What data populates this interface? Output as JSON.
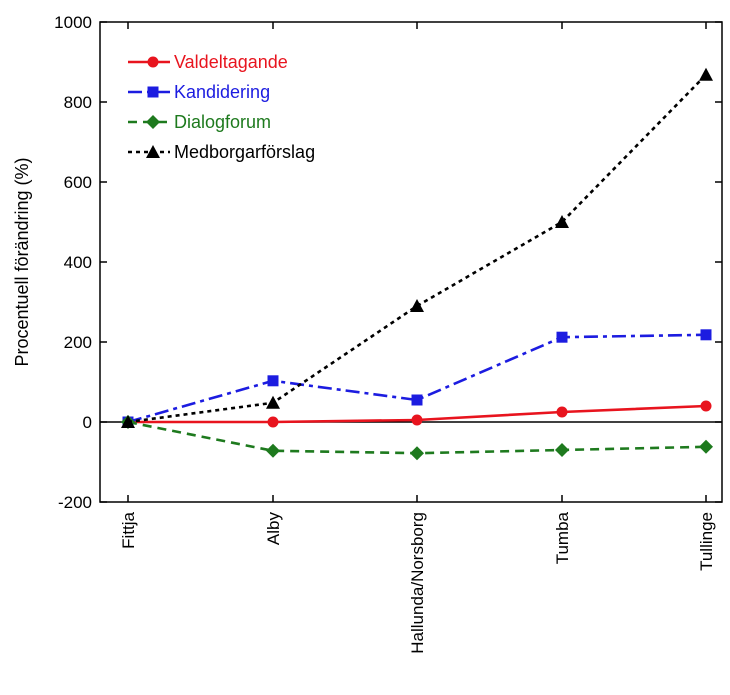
{
  "chart_data": {
    "type": "line",
    "title": "",
    "xlabel": "",
    "ylabel": "Procentuell förändring (%)",
    "ylim": [
      -200,
      1000
    ],
    "yticks": [
      -200,
      0,
      200,
      400,
      600,
      800,
      1000
    ],
    "categories": [
      "Fittja",
      "Alby",
      "Hallunda/Norsborg",
      "Tumba",
      "Tullinge"
    ],
    "legend_position": "top-left",
    "grid": false,
    "zero_line": true,
    "series": [
      {
        "name": "Valdeltagande",
        "color": "#e8141e",
        "dash": "solid",
        "marker": "circle",
        "values": [
          0,
          0,
          5,
          25,
          40
        ]
      },
      {
        "name": "Kandidering",
        "color": "#1c1ce0",
        "dash": "dashdot",
        "marker": "square",
        "values": [
          0,
          103,
          55,
          212,
          218
        ]
      },
      {
        "name": "Dialogforum",
        "color": "#1e7a1e",
        "dash": "dashed",
        "marker": "diamond",
        "values": [
          0,
          -72,
          -78,
          -70,
          -62
        ]
      },
      {
        "name": "Medborgarförslag",
        "color": "#000000",
        "dash": "dotted",
        "marker": "triangle",
        "values": [
          0,
          48,
          290,
          500,
          868
        ]
      }
    ]
  }
}
